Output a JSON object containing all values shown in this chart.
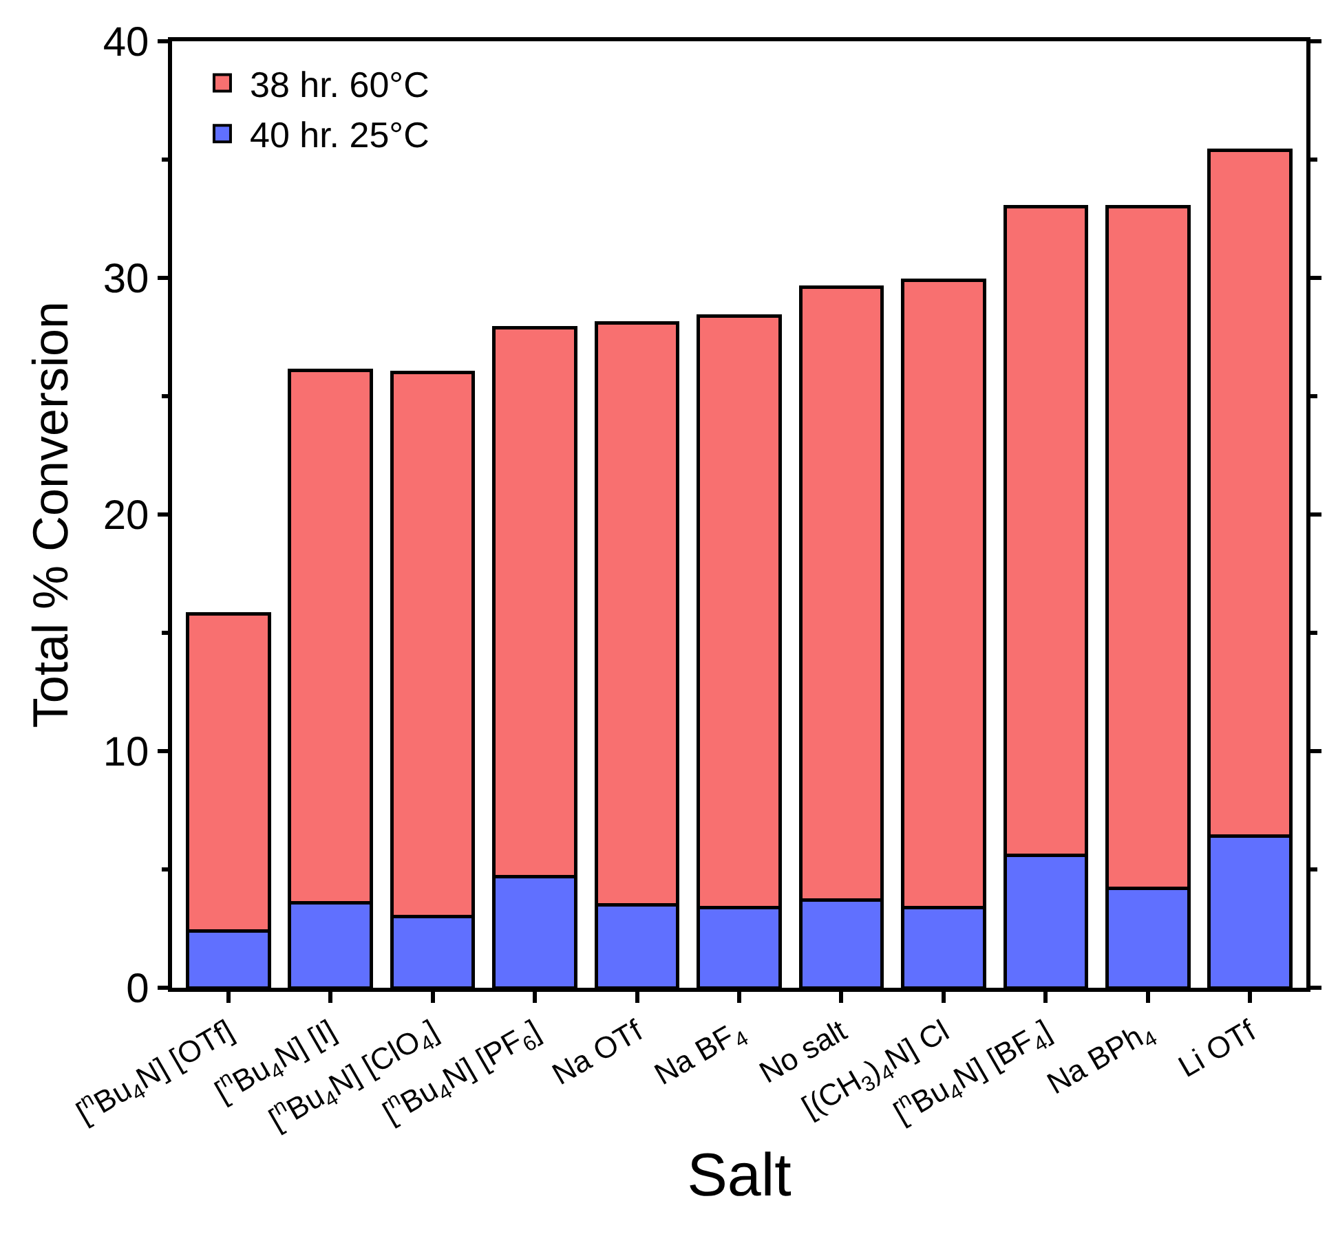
{
  "chart_data": {
    "type": "bar",
    "stacked": true,
    "xlabel": "Salt",
    "ylabel": "Total % Conversion",
    "categories": [
      "[$^{n}$Bu$_{4}$N] [OTf]",
      "[$^{n}$Bu$_{4}$N] [I]",
      "[$^{n}$Bu$_{4}$N] [ClO$_{4}$]",
      "[$^{n}$Bu$_{4}$N] [PF$_{6}$]",
      "Na OTf",
      "Na BF$_{4}$",
      "No salt",
      "[(CH$_{3}$)$_{4}$N] Cl",
      "[$^{n}$Bu$_{4}$N] [BF$_{4}$]",
      "Na BPh$_{4}$",
      "Li OTf"
    ],
    "series": [
      {
        "name": "40 hr. 25°C",
        "color": "#6070ff",
        "values": [
          2.4,
          3.6,
          3.0,
          4.7,
          3.5,
          3.4,
          3.7,
          3.4,
          5.6,
          4.2,
          6.4
        ]
      },
      {
        "name": "38 hr. 60°C",
        "color": "#f87070",
        "values": [
          13.4,
          22.5,
          23.0,
          23.2,
          24.6,
          25.0,
          25.9,
          26.5,
          27.4,
          28.8,
          29.0
        ]
      }
    ],
    "ylim": [
      0,
      40
    ],
    "yticks": [
      0,
      10,
      20,
      30,
      40
    ],
    "legend": "top left"
  }
}
